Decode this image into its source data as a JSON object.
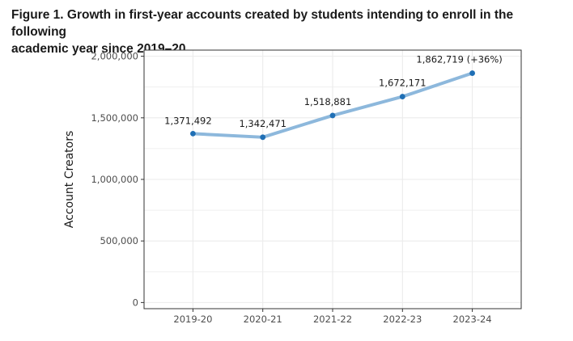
{
  "figure": {
    "title_line1": "Figure 1. Growth in first-year accounts created by students intending to enroll in the following",
    "title_line2": "academic year since 2019–20"
  },
  "chart_data": {
    "type": "line",
    "title": "",
    "xlabel": "",
    "ylabel": "Account Creators",
    "categories": [
      "2019-20",
      "2020-21",
      "2021-22",
      "2022-23",
      "2023-24"
    ],
    "series": [
      {
        "values": [
          1371492,
          1342471,
          1518881,
          1672171,
          1862719
        ]
      }
    ],
    "data_labels": [
      "1,371,492",
      "1,342,471",
      "1,518,881",
      "1,672,171",
      "1,862,719 (+36%)"
    ],
    "ylim": [
      -50000,
      2050000
    ],
    "yticks": [
      0,
      500000,
      1000000,
      1500000,
      2000000
    ],
    "ytick_labels": [
      "0",
      "500,000",
      "1,000,000",
      "1,500,000",
      "2,000,000"
    ],
    "grid": true,
    "colors": {
      "line": "#8db8dc",
      "point": "#1f6fb5",
      "grid": "#ebebeb",
      "panel_border": "#333333"
    }
  }
}
